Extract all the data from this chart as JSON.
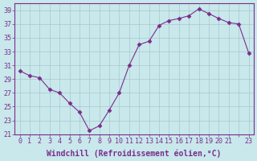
{
  "x_labels": [
    "0",
    "1",
    "2",
    "3",
    "4",
    "5",
    "6",
    "7",
    "8",
    "9",
    "10",
    "11",
    "12",
    "13",
    "14",
    "15",
    "16",
    "17",
    "18",
    "19",
    "20",
    "21",
    "",
    "23"
  ],
  "y": [
    30.2,
    29.5,
    29.2,
    27.5,
    27.0,
    25.5,
    24.2,
    21.5,
    22.2,
    24.5,
    27.0,
    31.0,
    34.0,
    34.5,
    36.8,
    37.5,
    37.8,
    38.2,
    39.2,
    38.5,
    37.8,
    37.2,
    37.0,
    32.8
  ],
  "line_color": "#7B2D8B",
  "marker": "D",
  "marker_size": 2.5,
  "bg_color": "#C8E8EC",
  "grid_color": "#A8C8CC",
  "xlabel": "Windchill (Refroidissement éolien,°C)",
  "ylim": [
    21,
    40
  ],
  "yticks": [
    21,
    23,
    25,
    27,
    29,
    31,
    33,
    35,
    37,
    39
  ],
  "tick_label_fontsize": 6.0,
  "xlabel_fontsize": 7.0,
  "tick_color": "#7B2D8B",
  "spine_color": "#7B2D8B"
}
